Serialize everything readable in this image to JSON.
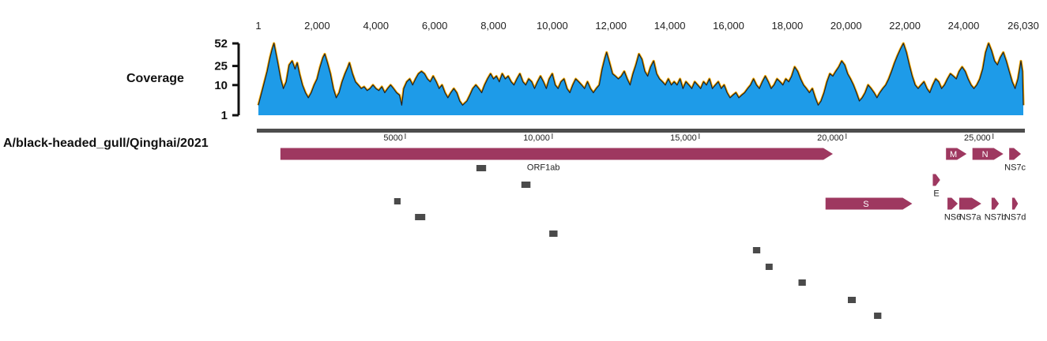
{
  "top_axis": {
    "ticks": [
      "1",
      "2,000",
      "4,000",
      "6,000",
      "8,000",
      "10,000",
      "12,000",
      "14,000",
      "16,000",
      "18,000",
      "20,000",
      "22,000",
      "24,000",
      "26,030"
    ],
    "range": [
      1,
      26030
    ]
  },
  "coverage": {
    "label": "Coverage",
    "ticks": [
      "52",
      "25",
      "10",
      "1"
    ],
    "tick_values": [
      52,
      25,
      10,
      1
    ],
    "max": 52,
    "fill_color": "#1e9be8",
    "edge_color": "#f0a500",
    "line_color": "#222222",
    "profile": [
      [
        1,
        2
      ],
      [
        150,
        8
      ],
      [
        300,
        20
      ],
      [
        400,
        34
      ],
      [
        470,
        44
      ],
      [
        530,
        52
      ],
      [
        590,
        40
      ],
      [
        660,
        28
      ],
      [
        760,
        14
      ],
      [
        850,
        8
      ],
      [
        950,
        12
      ],
      [
        1050,
        26
      ],
      [
        1150,
        30
      ],
      [
        1250,
        22
      ],
      [
        1320,
        28
      ],
      [
        1400,
        18
      ],
      [
        1500,
        10
      ],
      [
        1600,
        6
      ],
      [
        1700,
        4
      ],
      [
        1800,
        6
      ],
      [
        1900,
        10
      ],
      [
        2000,
        14
      ],
      [
        2100,
        24
      ],
      [
        2200,
        34
      ],
      [
        2260,
        38
      ],
      [
        2350,
        28
      ],
      [
        2450,
        18
      ],
      [
        2550,
        8
      ],
      [
        2650,
        4
      ],
      [
        2750,
        6
      ],
      [
        2850,
        12
      ],
      [
        2950,
        18
      ],
      [
        3050,
        24
      ],
      [
        3100,
        28
      ],
      [
        3200,
        18
      ],
      [
        3300,
        12
      ],
      [
        3400,
        10
      ],
      [
        3500,
        8
      ],
      [
        3600,
        9
      ],
      [
        3700,
        7
      ],
      [
        3800,
        8
      ],
      [
        3900,
        10
      ],
      [
        4000,
        8
      ],
      [
        4100,
        7
      ],
      [
        4200,
        9
      ],
      [
        4300,
        6
      ],
      [
        4400,
        8
      ],
      [
        4500,
        10
      ],
      [
        4600,
        8
      ],
      [
        4700,
        6
      ],
      [
        4800,
        5
      ],
      [
        4880,
        2
      ],
      [
        4950,
        8
      ],
      [
        5050,
        12
      ],
      [
        5150,
        14
      ],
      [
        5250,
        10
      ],
      [
        5350,
        14
      ],
      [
        5450,
        18
      ],
      [
        5550,
        20
      ],
      [
        5650,
        18
      ],
      [
        5750,
        14
      ],
      [
        5850,
        12
      ],
      [
        5950,
        16
      ],
      [
        6050,
        12
      ],
      [
        6150,
        8
      ],
      [
        6250,
        10
      ],
      [
        6350,
        6
      ],
      [
        6450,
        4
      ],
      [
        6550,
        6
      ],
      [
        6650,
        8
      ],
      [
        6750,
        6
      ],
      [
        6850,
        3
      ],
      [
        6950,
        2
      ],
      [
        7100,
        3
      ],
      [
        7200,
        5
      ],
      [
        7300,
        8
      ],
      [
        7400,
        10
      ],
      [
        7500,
        8
      ],
      [
        7600,
        6
      ],
      [
        7700,
        10
      ],
      [
        7800,
        14
      ],
      [
        7900,
        18
      ],
      [
        8000,
        14
      ],
      [
        8100,
        16
      ],
      [
        8200,
        12
      ],
      [
        8300,
        18
      ],
      [
        8400,
        14
      ],
      [
        8500,
        16
      ],
      [
        8600,
        12
      ],
      [
        8700,
        10
      ],
      [
        8800,
        14
      ],
      [
        8900,
        18
      ],
      [
        9000,
        12
      ],
      [
        9100,
        10
      ],
      [
        9200,
        14
      ],
      [
        9300,
        12
      ],
      [
        9400,
        8
      ],
      [
        9500,
        12
      ],
      [
        9600,
        16
      ],
      [
        9700,
        12
      ],
      [
        9800,
        8
      ],
      [
        9900,
        14
      ],
      [
        10000,
        18
      ],
      [
        10100,
        10
      ],
      [
        10200,
        8
      ],
      [
        10300,
        12
      ],
      [
        10400,
        14
      ],
      [
        10500,
        8
      ],
      [
        10600,
        6
      ],
      [
        10700,
        10
      ],
      [
        10800,
        14
      ],
      [
        10900,
        12
      ],
      [
        11000,
        10
      ],
      [
        11100,
        8
      ],
      [
        11200,
        12
      ],
      [
        11300,
        8
      ],
      [
        11400,
        6
      ],
      [
        11500,
        8
      ],
      [
        11600,
        10
      ],
      [
        11700,
        22
      ],
      [
        11800,
        34
      ],
      [
        11850,
        40
      ],
      [
        11950,
        28
      ],
      [
        12050,
        18
      ],
      [
        12150,
        16
      ],
      [
        12250,
        14
      ],
      [
        12350,
        16
      ],
      [
        12450,
        20
      ],
      [
        12550,
        14
      ],
      [
        12650,
        10
      ],
      [
        12750,
        18
      ],
      [
        12850,
        26
      ],
      [
        12950,
        38
      ],
      [
        13050,
        32
      ],
      [
        13150,
        20
      ],
      [
        13250,
        16
      ],
      [
        13350,
        24
      ],
      [
        13450,
        30
      ],
      [
        13550,
        18
      ],
      [
        13650,
        14
      ],
      [
        13750,
        12
      ],
      [
        13850,
        10
      ],
      [
        13950,
        14
      ],
      [
        14050,
        10
      ],
      [
        14150,
        12
      ],
      [
        14250,
        10
      ],
      [
        14350,
        14
      ],
      [
        14450,
        8
      ],
      [
        14550,
        12
      ],
      [
        14650,
        10
      ],
      [
        14750,
        8
      ],
      [
        14850,
        12
      ],
      [
        14950,
        10
      ],
      [
        15050,
        8
      ],
      [
        15150,
        12
      ],
      [
        15250,
        10
      ],
      [
        15350,
        14
      ],
      [
        15450,
        8
      ],
      [
        15550,
        10
      ],
      [
        15650,
        12
      ],
      [
        15750,
        8
      ],
      [
        15850,
        10
      ],
      [
        15950,
        6
      ],
      [
        16050,
        4
      ],
      [
        16150,
        5
      ],
      [
        16250,
        6
      ],
      [
        16350,
        4
      ],
      [
        16450,
        5
      ],
      [
        16550,
        6
      ],
      [
        16650,
        8
      ],
      [
        16750,
        10
      ],
      [
        16850,
        14
      ],
      [
        16950,
        10
      ],
      [
        17050,
        8
      ],
      [
        17150,
        12
      ],
      [
        17250,
        16
      ],
      [
        17350,
        12
      ],
      [
        17450,
        8
      ],
      [
        17550,
        10
      ],
      [
        17650,
        14
      ],
      [
        17750,
        12
      ],
      [
        17850,
        10
      ],
      [
        17950,
        14
      ],
      [
        18050,
        12
      ],
      [
        18150,
        16
      ],
      [
        18250,
        24
      ],
      [
        18350,
        20
      ],
      [
        18450,
        14
      ],
      [
        18550,
        10
      ],
      [
        18650,
        8
      ],
      [
        18750,
        6
      ],
      [
        18850,
        8
      ],
      [
        18950,
        4
      ],
      [
        19050,
        2
      ],
      [
        19150,
        3
      ],
      [
        19250,
        6
      ],
      [
        19350,
        12
      ],
      [
        19450,
        18
      ],
      [
        19550,
        16
      ],
      [
        19650,
        20
      ],
      [
        19750,
        24
      ],
      [
        19850,
        30
      ],
      [
        19950,
        26
      ],
      [
        20050,
        18
      ],
      [
        20150,
        14
      ],
      [
        20250,
        10
      ],
      [
        20350,
        6
      ],
      [
        20450,
        3
      ],
      [
        20550,
        4
      ],
      [
        20650,
        6
      ],
      [
        20750,
        10
      ],
      [
        20850,
        8
      ],
      [
        20950,
        6
      ],
      [
        21050,
        4
      ],
      [
        21150,
        6
      ],
      [
        21250,
        8
      ],
      [
        21350,
        10
      ],
      [
        21450,
        14
      ],
      [
        21550,
        20
      ],
      [
        21650,
        28
      ],
      [
        21750,
        36
      ],
      [
        21850,
        44
      ],
      [
        21950,
        52
      ],
      [
        22050,
        40
      ],
      [
        22150,
        26
      ],
      [
        22250,
        16
      ],
      [
        22350,
        10
      ],
      [
        22450,
        8
      ],
      [
        22550,
        10
      ],
      [
        22650,
        12
      ],
      [
        22750,
        8
      ],
      [
        22850,
        6
      ],
      [
        22950,
        10
      ],
      [
        23050,
        14
      ],
      [
        23150,
        12
      ],
      [
        23250,
        8
      ],
      [
        23350,
        10
      ],
      [
        23450,
        14
      ],
      [
        23550,
        18
      ],
      [
        23650,
        16
      ],
      [
        23750,
        14
      ],
      [
        23850,
        20
      ],
      [
        23950,
        24
      ],
      [
        24050,
        20
      ],
      [
        24150,
        14
      ],
      [
        24250,
        10
      ],
      [
        24350,
        8
      ],
      [
        24450,
        10
      ],
      [
        24550,
        14
      ],
      [
        24650,
        22
      ],
      [
        24750,
        40
      ],
      [
        24850,
        52
      ],
      [
        24950,
        42
      ],
      [
        25050,
        30
      ],
      [
        25150,
        26
      ],
      [
        25250,
        34
      ],
      [
        25350,
        40
      ],
      [
        25450,
        30
      ],
      [
        25550,
        20
      ],
      [
        25650,
        12
      ],
      [
        25750,
        8
      ],
      [
        25850,
        14
      ],
      [
        25950,
        30
      ],
      [
        26000,
        20
      ],
      [
        26030,
        2
      ]
    ]
  },
  "sequence": {
    "name": "A/black-headed_gull/Qinghai/2021",
    "ruler_ticks": [
      5000,
      10000,
      15000,
      20000,
      25000
    ],
    "ruler_labels": [
      "5000",
      "10,000",
      "15,000",
      "20,000",
      "25,000"
    ]
  },
  "annotation_color": "#9e3860",
  "genes": [
    {
      "name": "ORF1ab",
      "start": 750,
      "end": 19550,
      "row": 0,
      "label_pos": "below",
      "label_at": 9700
    },
    {
      "name": "M",
      "start": 23400,
      "end": 24100,
      "row": 0,
      "label_pos": "inside"
    },
    {
      "name": "N",
      "start": 24300,
      "end": 25350,
      "row": 0,
      "label_pos": "inside"
    },
    {
      "name": "NS7c",
      "start": 25550,
      "end": 25950,
      "row": 0,
      "label_pos": "below"
    },
    {
      "name": "E",
      "start": 22950,
      "end": 23200,
      "row": 1,
      "label_pos": "below"
    },
    {
      "name": "S",
      "start": 19300,
      "end": 22250,
      "row": 2,
      "label_pos": "inside"
    },
    {
      "name": "NS6",
      "start": 23450,
      "end": 23800,
      "row": 2,
      "label_pos": "below"
    },
    {
      "name": "NS7a",
      "start": 23850,
      "end": 24600,
      "row": 2,
      "label_pos": "below"
    },
    {
      "name": "NS7b",
      "start": 24950,
      "end": 25200,
      "row": 2,
      "label_pos": "below"
    },
    {
      "name": "NS7d",
      "start": 25650,
      "end": 25850,
      "row": 2,
      "label_pos": "below"
    }
  ],
  "read_color": "#4a4a4a",
  "reads": [
    {
      "start": 7420,
      "end": 7750,
      "lane": 0
    },
    {
      "start": 8950,
      "end": 9260,
      "lane": 1
    },
    {
      "start": 4620,
      "end": 4840,
      "lane": 2
    },
    {
      "start": 5330,
      "end": 5680,
      "lane": 3
    },
    {
      "start": 9900,
      "end": 10180,
      "lane": 4
    },
    {
      "start": 16830,
      "end": 17080,
      "lane": 5
    },
    {
      "start": 17260,
      "end": 17500,
      "lane": 6
    },
    {
      "start": 18380,
      "end": 18630,
      "lane": 7
    },
    {
      "start": 20060,
      "end": 20330,
      "lane": 8
    },
    {
      "start": 20950,
      "end": 21200,
      "lane": 9
    }
  ]
}
